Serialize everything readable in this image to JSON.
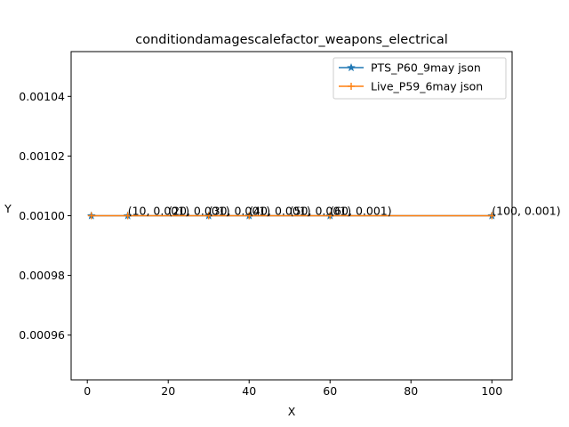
{
  "chart_data": {
    "type": "line",
    "title": "conditiondamagescalefactor_weapons_electrical",
    "xlabel": "X",
    "ylabel": "Y",
    "xlim": [
      -4,
      105
    ],
    "ylim": [
      0.000945,
      0.001055
    ],
    "xticks": [
      0,
      20,
      40,
      60,
      80,
      100
    ],
    "xtick_labels": [
      "0",
      "20",
      "40",
      "60",
      "80",
      "100"
    ],
    "yticks": [
      0.00096,
      0.00098,
      0.001,
      0.00102,
      0.00104
    ],
    "ytick_labels": [
      "0.00096",
      "0.00098",
      "0.00100",
      "0.00102",
      "0.00104"
    ],
    "grid": false,
    "legend_position": "top-right",
    "series": [
      {
        "name": "PTS_P60_9may json",
        "color": "#1f77b4",
        "marker": "star",
        "x": [
          1,
          10,
          30,
          40,
          60,
          100
        ],
        "y": [
          0.001,
          0.001,
          0.001,
          0.001,
          0.001,
          0.001
        ]
      },
      {
        "name": "Live_P59_6may json",
        "color": "#ff7f0e",
        "marker": "plus",
        "x": [
          1,
          10,
          30,
          40,
          60,
          100
        ],
        "y": [
          0.001,
          0.001,
          0.001,
          0.001,
          0.001,
          0.001
        ]
      }
    ],
    "annotations": [
      {
        "x": 10,
        "y": 0.001,
        "text": "(10, 0.001)"
      },
      {
        "x": 20,
        "y": 0.001,
        "text": "(20, 0.001)"
      },
      {
        "x": 30,
        "y": 0.001,
        "text": "(30, 0.001)"
      },
      {
        "x": 40,
        "y": 0.001,
        "text": "(40, 0.001)"
      },
      {
        "x": 50,
        "y": 0.001,
        "text": "(50, 0.001)"
      },
      {
        "x": 60,
        "y": 0.001,
        "text": "(60, 0.001)"
      },
      {
        "x": 100,
        "y": 0.001,
        "text": "(100, 0.001)"
      }
    ]
  }
}
